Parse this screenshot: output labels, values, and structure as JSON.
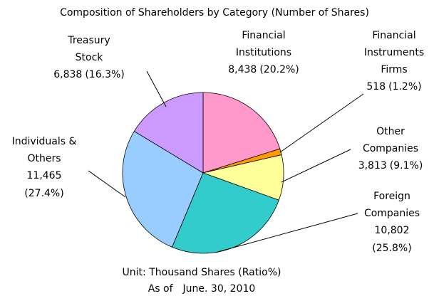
{
  "chart_data": {
    "type": "pie",
    "title": "Composition of Shareholders by Category (Number of Shares)",
    "notes": [
      "Unit: Thousand Shares (Ratio%)",
      "As of　June. 30, 2010"
    ],
    "categories": [
      [
        "Financial",
        "Institutions"
      ],
      [
        "Financial",
        "Instruments",
        "Firms"
      ],
      [
        "Other",
        "Companies"
      ],
      [
        "Foreign",
        "Companies"
      ],
      [
        "Individuals &",
        "Others"
      ],
      [
        "Treasury",
        "Stock"
      ]
    ],
    "values": [
      8438,
      518,
      3813,
      10802,
      11465,
      6838
    ],
    "value_labels": [
      "8,438",
      "518",
      "3,813",
      "10,802",
      "11,465",
      "6,838"
    ],
    "percent_labels": [
      "(20.2%)",
      "(1.2%)",
      "(9.1%)",
      "(25.8%)",
      "(27.4%)",
      "(16.3%)"
    ],
    "colors": [
      "#ff99cc",
      "#ff9900",
      "#ffff99",
      "#33cccc",
      "#99ccff",
      "#cc99ff"
    ]
  }
}
